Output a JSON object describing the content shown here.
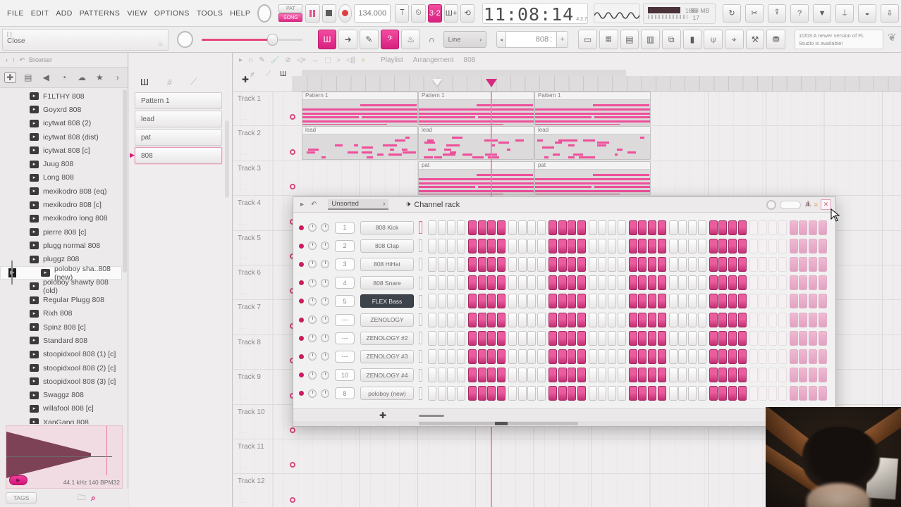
{
  "menu": {
    "items": [
      "FILE",
      "EDIT",
      "ADD",
      "PATTERNS",
      "VIEW",
      "OPTIONS",
      "TOOLS",
      "HELP"
    ]
  },
  "transport": {
    "pat_label": "PAT",
    "song_label": "SONG",
    "tempo": "134.000",
    "time": "11:08:14",
    "time_sub": "4.2.7"
  },
  "system": {
    "cpu": "35",
    "memory": "1868 MB",
    "count": "17"
  },
  "hint": {
    "keys": "[ ]",
    "text": "Close"
  },
  "toolbar": {
    "snap_label": "Line",
    "pattern_value": "808",
    "pattern_plus": "+",
    "notice_date": "10/03",
    "notice_text": "A newer version of FL Studio is available!"
  },
  "browser": {
    "title": "Browser",
    "items": [
      {
        "label": "F1LTHY 808"
      },
      {
        "label": "Goyxrd 808"
      },
      {
        "label": "icytwat 808 (2)"
      },
      {
        "label": "icytwat 808 (dist)"
      },
      {
        "label": "icytwat 808 [c]"
      },
      {
        "label": "Juug 808"
      },
      {
        "label": "Long 808"
      },
      {
        "label": "mexikodro 808 (eq)"
      },
      {
        "label": "mexikodro 808 [c]"
      },
      {
        "label": "mexikodro long 808"
      },
      {
        "label": "pierre 808 [c]"
      },
      {
        "label": "plugg normal 808"
      },
      {
        "label": "pluggz 808"
      },
      {
        "label": "poloboy sha..808 (new)",
        "selected": true
      },
      {
        "label": "poloboy shawty 808 (old)"
      },
      {
        "label": "Regular Plugg 808"
      },
      {
        "label": "Rixh 808"
      },
      {
        "label": "Spinz 808 [c]"
      },
      {
        "label": "Standard 808"
      },
      {
        "label": "stoopidxool 808 (1) [c]"
      },
      {
        "label": "stoopidxool 808 (2) [c]"
      },
      {
        "label": "stoopidxool 808 (3) [c]"
      },
      {
        "label": "Swaggz 808"
      },
      {
        "label": "willafool 808 [c]"
      },
      {
        "label": "XanGang 808"
      }
    ],
    "preview_info": "44.1 kHz 140 BPM32",
    "tags_label": "TAGS"
  },
  "patterns": {
    "items": [
      {
        "label": "Pattern 1"
      },
      {
        "label": "lead"
      },
      {
        "label": "pat"
      },
      {
        "label": "808",
        "selected": true
      }
    ]
  },
  "playlist": {
    "title_parts": [
      "Playlist",
      "Arrangement",
      "808"
    ],
    "tracks": [
      "Track 1",
      "Track 2",
      "Track 3",
      "Track 4",
      "Track 5",
      "Track 6",
      "Track 7",
      "Track 8",
      "Track 9",
      "Track 10",
      "Track 11",
      "Track 12"
    ],
    "clips": [
      {
        "track": 0,
        "slot": 0,
        "label": "Pattern 1",
        "style": "stripes"
      },
      {
        "track": 0,
        "slot": 1,
        "label": "Pattern 1",
        "style": "stripes"
      },
      {
        "track": 0,
        "slot": 2,
        "label": "Pattern 1",
        "style": "stripes"
      },
      {
        "track": 1,
        "slot": 0,
        "label": "lead",
        "style": "notes"
      },
      {
        "track": 1,
        "slot": 1,
        "label": "lead",
        "style": "notes"
      },
      {
        "track": 1,
        "slot": 2,
        "label": "lead",
        "style": "notes"
      },
      {
        "track": 2,
        "slot": 1,
        "label": "pat",
        "style": "stripes"
      },
      {
        "track": 2,
        "slot": 2,
        "label": "pat",
        "style": "stripes"
      }
    ]
  },
  "channel_rack": {
    "sort_label": "Unsorted",
    "title": "Channel rack",
    "channels": [
      {
        "num": "1",
        "name": "808 Kick"
      },
      {
        "num": "2",
        "name": "808 Clap"
      },
      {
        "num": "3",
        "name": "808 HiHat"
      },
      {
        "num": "4",
        "name": "808 Snare"
      },
      {
        "num": "5",
        "name": "FLEX Bass",
        "selected": true
      },
      {
        "num": "---",
        "name": "ZENOLOGY"
      },
      {
        "num": "---",
        "name": "ZENOLOGY #2"
      },
      {
        "num": "---",
        "name": "ZENOLOGY #3"
      },
      {
        "num": "10",
        "name": "ZENOLOGY #4"
      },
      {
        "num": "8",
        "name": "poloboy  (new)"
      }
    ],
    "steps_total": 40,
    "pattern_length": 32,
    "group_fill": [
      false,
      true,
      false,
      true,
      false,
      true,
      false,
      true,
      false,
      true
    ]
  },
  "colors": {
    "accent": "#d8227f",
    "step_on": "#c22e72",
    "playhead": "#f27ab4",
    "selected_channel_bg": "#3d434b"
  }
}
